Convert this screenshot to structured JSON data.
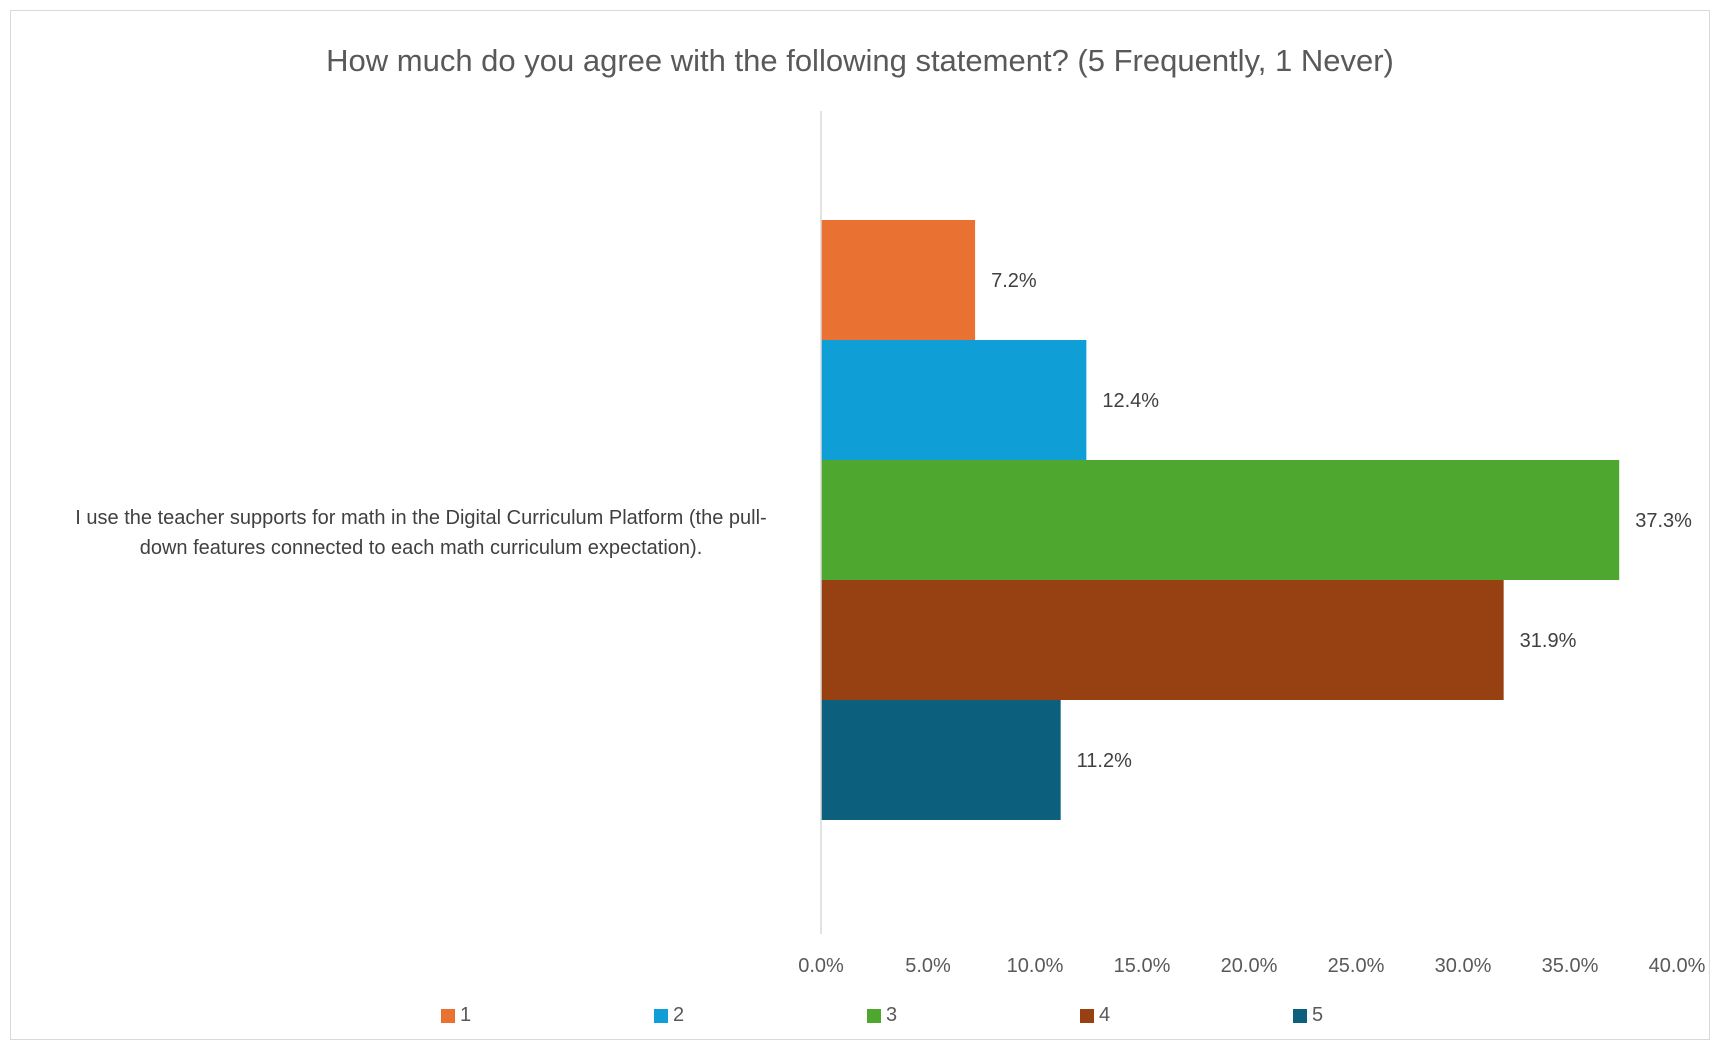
{
  "chart_data": {
    "type": "bar",
    "orientation": "horizontal",
    "title": "How much do you agree with the following statement? (5 Frequently, 1 Never)",
    "categories": [
      "I use the teacher supports for math in the Digital Curriculum Platform (the pull-down features connected to each math curriculum expectation)."
    ],
    "category_lines": [
      "I use the teacher supports for math in the Digital Curriculum Platform (the pull-",
      "down features connected to each math curriculum expectation)."
    ],
    "series": [
      {
        "name": "1",
        "values": [
          7.2
        ],
        "label": "7.2%",
        "color": "#E97132"
      },
      {
        "name": "2",
        "values": [
          12.4
        ],
        "label": "12.4%",
        "color": "#0F9ED5"
      },
      {
        "name": "3",
        "values": [
          37.3
        ],
        "label": "37.3%",
        "color": "#4EA72E"
      },
      {
        "name": "4",
        "values": [
          31.9
        ],
        "label": "31.9%",
        "color": "#974011"
      },
      {
        "name": "5",
        "values": [
          11.2
        ],
        "label": "11.2%",
        "color": "#0C5F7D"
      }
    ],
    "xlim": [
      0,
      40
    ],
    "x_ticks": [
      "0.0%",
      "5.0%",
      "10.0%",
      "15.0%",
      "20.0%",
      "25.0%",
      "30.0%",
      "35.0%",
      "40.0%"
    ],
    "grid": false,
    "legend_position": "bottom",
    "xlabel": "",
    "ylabel": ""
  }
}
